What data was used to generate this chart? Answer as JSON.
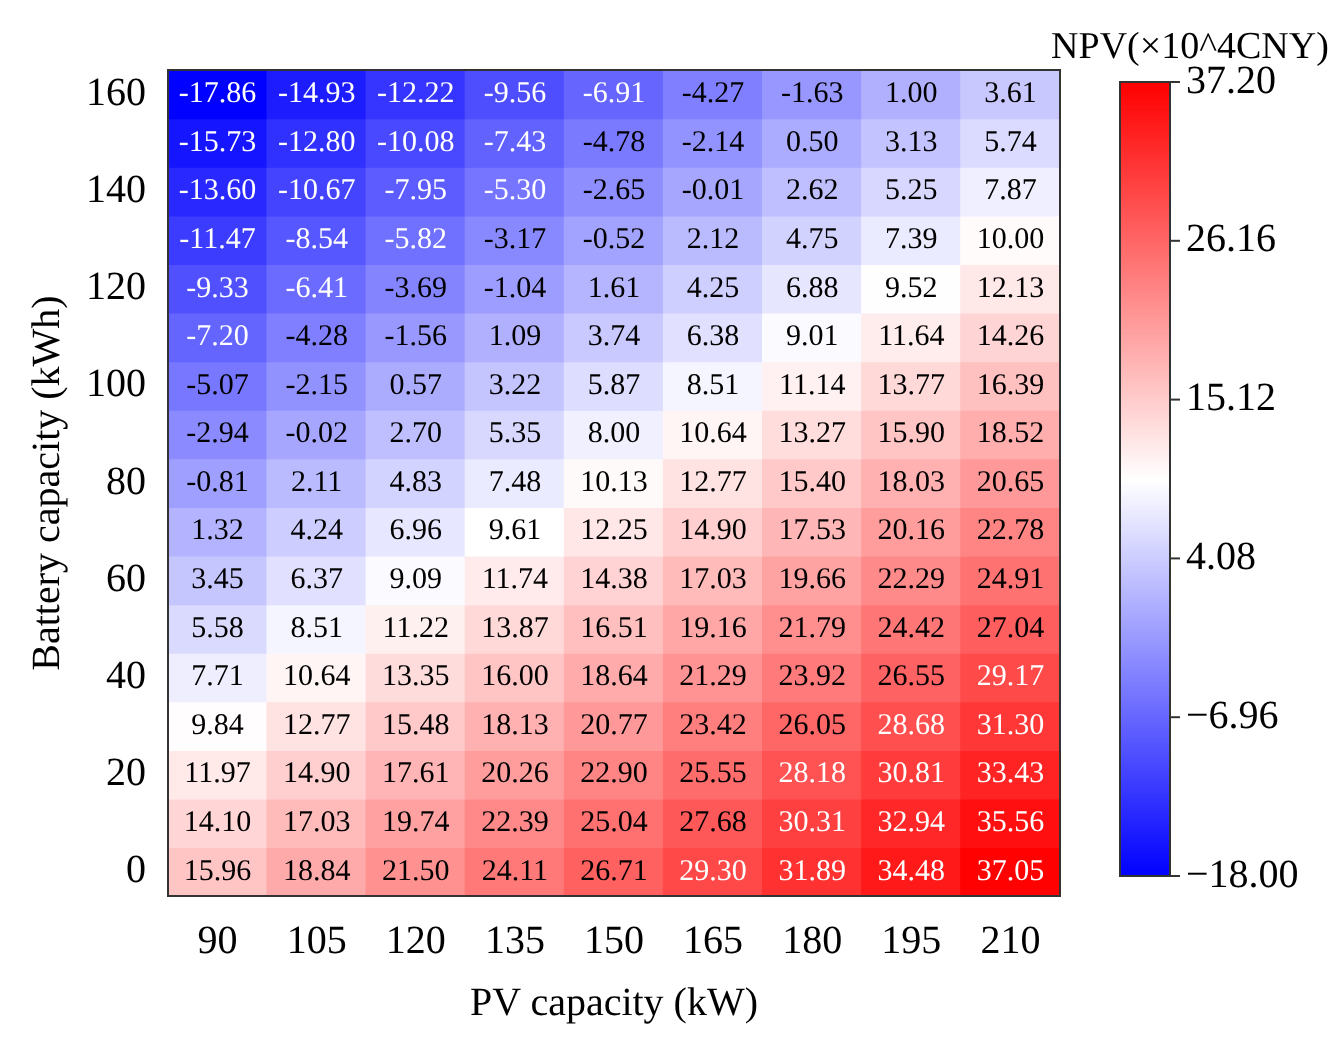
{
  "chart_data": {
    "type": "heatmap",
    "xlabel": "PV capacity (kW)",
    "ylabel": "Battery capacity (kWh)",
    "clabel": "NPV(×10^4CNY)",
    "categories": [
      "90",
      "105",
      "120",
      "135",
      "150",
      "165",
      "180",
      "195",
      "210"
    ],
    "y_categories": [
      "160",
      null,
      "140",
      null,
      "120",
      null,
      "100",
      null,
      "80",
      null,
      "60",
      null,
      "40",
      null,
      "20",
      null,
      "0"
    ],
    "cells": [
      [
        -17.86,
        -14.93,
        -12.22,
        -9.56,
        -6.91,
        -4.27,
        -1.63,
        1.0,
        3.61
      ],
      [
        -15.73,
        -12.8,
        -10.08,
        -7.43,
        -4.78,
        -2.14,
        0.5,
        3.13,
        5.74
      ],
      [
        -13.6,
        -10.67,
        -7.95,
        -5.3,
        -2.65,
        -0.01,
        2.62,
        5.25,
        7.87
      ],
      [
        -11.47,
        -8.54,
        -5.82,
        -3.17,
        -0.52,
        2.12,
        4.75,
        7.39,
        10.0
      ],
      [
        -9.33,
        -6.41,
        -3.69,
        -1.04,
        1.61,
        4.25,
        6.88,
        9.52,
        12.13
      ],
      [
        -7.2,
        -4.28,
        -1.56,
        1.09,
        3.74,
        6.38,
        9.01,
        11.64,
        14.26
      ],
      [
        -5.07,
        -2.15,
        0.57,
        3.22,
        5.87,
        8.51,
        11.14,
        13.77,
        16.39
      ],
      [
        -2.94,
        -0.02,
        2.7,
        5.35,
        8.0,
        10.64,
        13.27,
        15.9,
        18.52
      ],
      [
        -0.81,
        2.11,
        4.83,
        7.48,
        10.13,
        12.77,
        15.4,
        18.03,
        20.65
      ],
      [
        1.32,
        4.24,
        6.96,
        9.61,
        12.25,
        14.9,
        17.53,
        20.16,
        22.78
      ],
      [
        3.45,
        6.37,
        9.09,
        11.74,
        14.38,
        17.03,
        19.66,
        22.29,
        24.91
      ],
      [
        5.58,
        8.51,
        11.22,
        13.87,
        16.51,
        19.16,
        21.79,
        24.42,
        27.04
      ],
      [
        7.71,
        10.64,
        13.35,
        16.0,
        18.64,
        21.29,
        23.92,
        26.55,
        29.17
      ],
      [
        9.84,
        12.77,
        15.48,
        18.13,
        20.77,
        23.42,
        26.05,
        28.68,
        31.3
      ],
      [
        11.97,
        14.9,
        17.61,
        20.26,
        22.9,
        25.55,
        28.18,
        30.81,
        33.43
      ],
      [
        14.1,
        17.03,
        19.74,
        22.39,
        25.04,
        27.68,
        30.31,
        32.94,
        35.56
      ],
      [
        15.96,
        18.84,
        21.5,
        24.11,
        26.71,
        29.3,
        31.89,
        34.48,
        37.05
      ]
    ],
    "clim": [
      -18.0,
      37.2
    ],
    "cticks": [
      {
        "value": -18.0,
        "label": "−18.00"
      },
      {
        "value": -6.96,
        "label": "−6.96"
      },
      {
        "value": 4.08,
        "label": "4.08"
      },
      {
        "value": 15.12,
        "label": "15.12"
      },
      {
        "value": 26.16,
        "label": "26.16"
      },
      {
        "value": 37.2,
        "label": "37.20"
      }
    ],
    "cell_labels": [
      [
        "-17.86",
        "-14.93",
        "-12.22",
        "-9.56",
        "-6.91",
        "-4.27",
        "-1.63",
        "1.00",
        "3.61"
      ],
      [
        "-15.73",
        "-12.80",
        "-10.08",
        "-7.43",
        "-4.78",
        "-2.14",
        "0.50",
        "3.13",
        "5.74"
      ],
      [
        "-13.60",
        "-10.67",
        "-7.95",
        "-5.30",
        "-2.65",
        "-0.01",
        "2.62",
        "5.25",
        "7.87"
      ],
      [
        "-11.47",
        "-8.54",
        "-5.82",
        "-3.17",
        "-0.52",
        "2.12",
        "4.75",
        "7.39",
        "10.00"
      ],
      [
        "-9.33",
        "-6.41",
        "-3.69",
        "-1.04",
        "1.61",
        "4.25",
        "6.88",
        "9.52",
        "12.13"
      ],
      [
        "-7.20",
        "-4.28",
        "-1.56",
        "1.09",
        "3.74",
        "6.38",
        "9.01",
        "11.64",
        "14.26"
      ],
      [
        "-5.07",
        "-2.15",
        "0.57",
        "3.22",
        "5.87",
        "8.51",
        "11.14",
        "13.77",
        "16.39"
      ],
      [
        "-2.94",
        "-0.02",
        "2.70",
        "5.35",
        "8.00",
        "10.64",
        "13.27",
        "15.90",
        "18.52"
      ],
      [
        "-0.81",
        "2.11",
        "4.83",
        "7.48",
        "10.13",
        "12.77",
        "15.40",
        "18.03",
        "20.65"
      ],
      [
        "1.32",
        "4.24",
        "6.96",
        "9.61",
        "12.25",
        "14.90",
        "17.53",
        "20.16",
        "22.78"
      ],
      [
        "3.45",
        "6.37",
        "9.09",
        "11.74",
        "14.38",
        "17.03",
        "19.66",
        "22.29",
        "24.91"
      ],
      [
        "5.58",
        "8.51",
        "11.22",
        "13.87",
        "16.51",
        "19.16",
        "21.79",
        "24.42",
        "27.04"
      ],
      [
        "7.71",
        "10.64",
        "13.35",
        "16.00",
        "18.64",
        "21.29",
        "23.92",
        "26.55",
        "29.17"
      ],
      [
        "9.84",
        "12.77",
        "15.48",
        "18.13",
        "20.77",
        "23.42",
        "26.05",
        "28.68",
        "31.30"
      ],
      [
        "11.97",
        "14.90",
        "17.61",
        "20.26",
        "22.90",
        "25.55",
        "28.18",
        "30.81",
        "33.43"
      ],
      [
        "14.10",
        "17.03",
        "19.74",
        "22.39",
        "25.04",
        "27.68",
        "30.31",
        "32.94",
        "35.56"
      ],
      [
        "15.96",
        "18.84",
        "21.50",
        "24.11",
        "26.71",
        "29.30",
        "31.89",
        "34.48",
        "37.05"
      ]
    ]
  }
}
